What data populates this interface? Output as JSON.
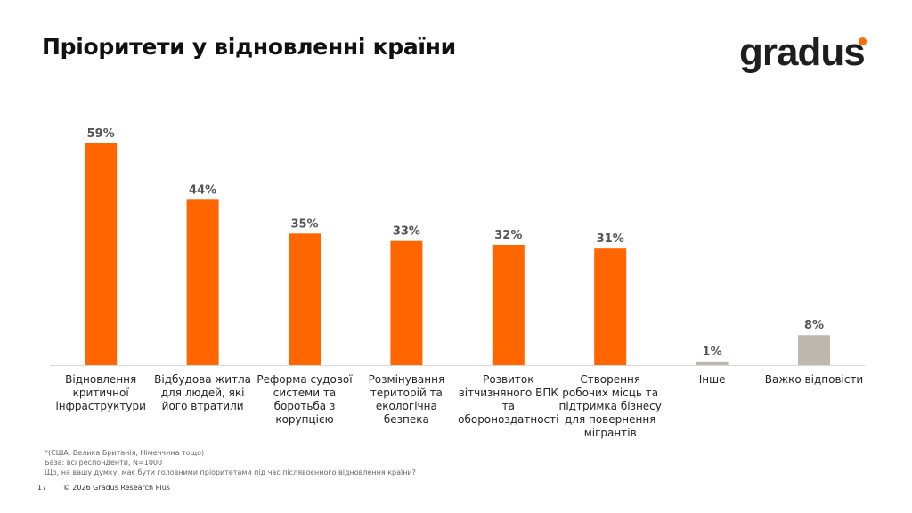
{
  "title": "Пріоритети у відновленні країни",
  "logo": "gradus",
  "chart_data": {
    "type": "bar",
    "categories": [
      "Відновлення критичної інфраструктури",
      "Відбудова житла для людей, які його втратили",
      "Реформа судової системи та боротьба з корупцією",
      "Розмінування територій та екологічна безпека",
      "Розвиток вітчизняного ВПК та обороноздатності",
      "Створення робочих місць та підтримка бізнесу для повернення мігрантів",
      "Інше",
      "Важко відповісти"
    ],
    "values": [
      59,
      44,
      35,
      33,
      32,
      31,
      1,
      8
    ],
    "labels": [
      "59%",
      "44%",
      "35%",
      "33%",
      "32%",
      "31%",
      "1%",
      "8%"
    ],
    "colors": [
      "#ff6600",
      "#ff6600",
      "#ff6600",
      "#ff6600",
      "#ff6600",
      "#ff6600",
      "#bfb8ae",
      "#bfb8ae"
    ],
    "ylim": [
      0,
      60
    ],
    "grid": false
  },
  "notes": [
    "*(США, Велика Британія, Німеччина тощо)",
    "База: всі респонденти, N=1000",
    "Що, на вашу думку, має бути головними пріоритетами під час післявоєнного відновлення країни?"
  ],
  "footer": {
    "page": "17",
    "copyright": "© 2026 Gradus Research Plus"
  }
}
